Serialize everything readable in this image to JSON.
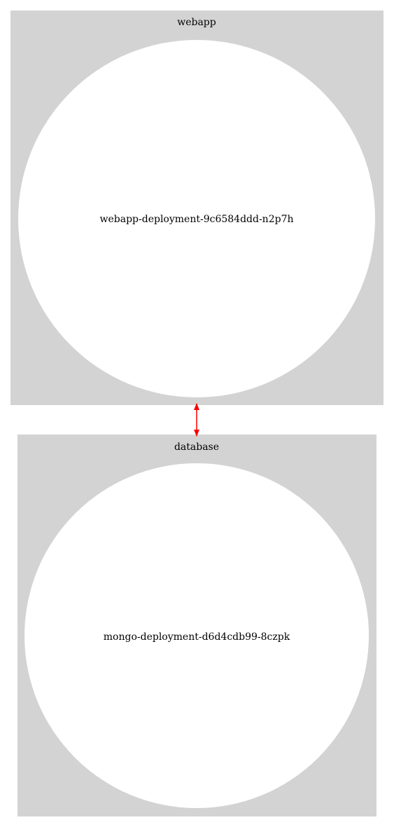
{
  "colors": {
    "cluster_fill": "#d3d3d3",
    "node_fill": "#ffffff",
    "edge": "#ff0000",
    "text": "#000000"
  },
  "clusters": [
    {
      "label": "webapp",
      "node": {
        "label": "webapp-deployment-9c6584ddd-n2p7h",
        "shape": "circle"
      }
    },
    {
      "label": "database",
      "node": {
        "label": "mongo-deployment-d6d4cdb99-8czpk",
        "shape": "circle"
      }
    }
  ],
  "edges": [
    {
      "from": "webapp-deployment-9c6584ddd-n2p7h",
      "to": "mongo-deployment-d6d4cdb99-8czpk",
      "direction": "both"
    }
  ]
}
